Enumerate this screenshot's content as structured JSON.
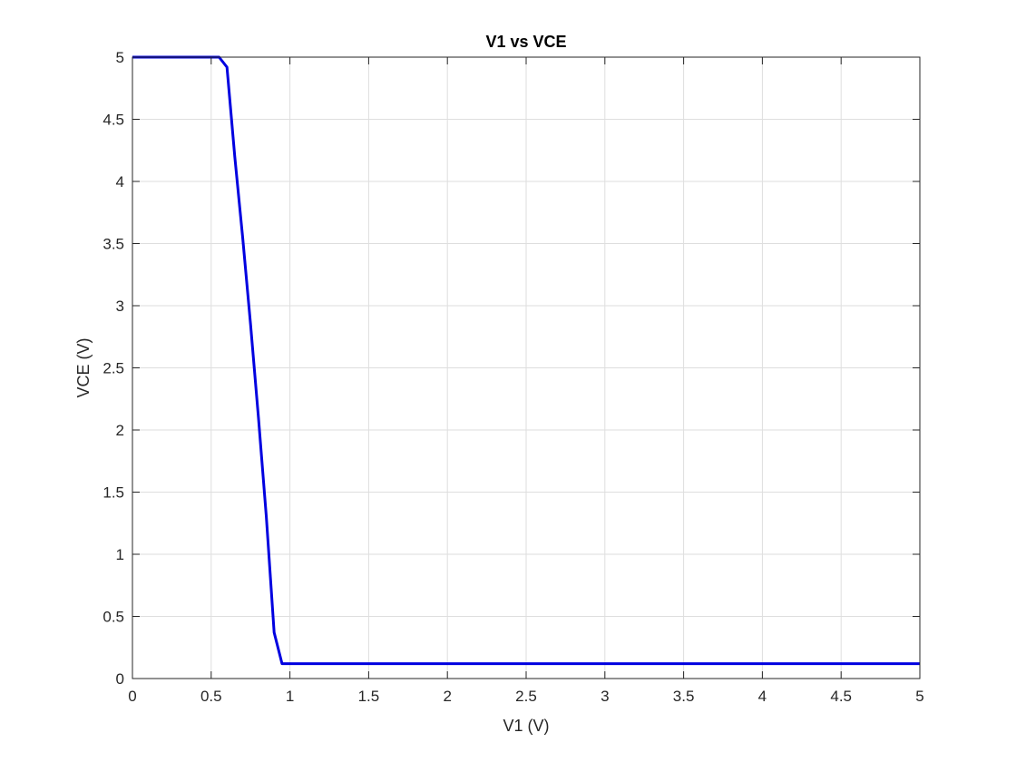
{
  "chart_data": {
    "type": "line",
    "title": "V1 vs VCE",
    "xlabel": "V1 (V)",
    "ylabel": "VCE (V)",
    "xlim": [
      0,
      5
    ],
    "ylim": [
      0,
      5
    ],
    "xticks": [
      0,
      0.5,
      1,
      1.5,
      2,
      2.5,
      3,
      3.5,
      4,
      4.5,
      5
    ],
    "yticks": [
      0,
      0.5,
      1,
      1.5,
      2,
      2.5,
      3,
      3.5,
      4,
      4.5,
      5
    ],
    "xtick_labels": [
      "0",
      "0.5",
      "1",
      "1.5",
      "2",
      "2.5",
      "3",
      "3.5",
      "4",
      "4.5",
      "5"
    ],
    "ytick_labels": [
      "0",
      "0.5",
      "1",
      "1.5",
      "2",
      "2.5",
      "3",
      "3.5",
      "4",
      "4.5",
      "5"
    ],
    "grid": true,
    "series": [
      {
        "color": "#0000e0",
        "x": [
          0,
          0.55,
          0.6,
          0.65,
          0.7,
          0.75,
          0.8,
          0.85,
          0.9,
          0.95,
          1.0,
          5.0
        ],
        "y": [
          5.0,
          5.0,
          4.92,
          4.2,
          3.55,
          2.85,
          2.1,
          1.3,
          0.37,
          0.12,
          0.12,
          0.12
        ]
      }
    ]
  }
}
